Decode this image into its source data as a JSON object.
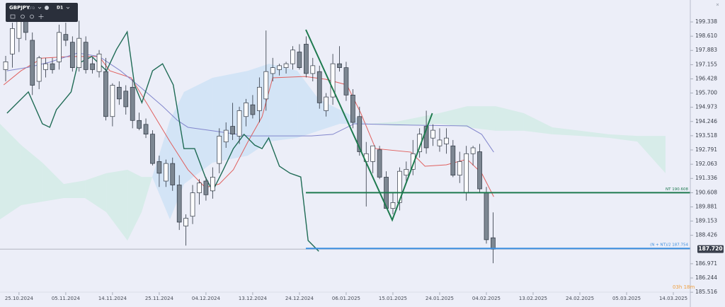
{
  "chart_data": {
    "type": "candlestick",
    "symbol": "GBPJPY",
    "instrument_type": "CFD",
    "timeframe": "D1",
    "countdown": "03h 18m",
    "ylim": [
      184.76,
      200.46
    ],
    "xlim": [
      -0.85,
      107.74
    ],
    "grid": false,
    "yticks": [
      199.338,
      {
        "value": 198.61,
        "label": "198.610"
      },
      197.883,
      197.155,
      196.428,
      {
        "value": 195.7,
        "label": "195.700"
      },
      194.973,
      194.246,
      193.518,
      192.791,
      192.063,
      191.336,
      190.608,
      189.881,
      189.153,
      188.426,
      186.971,
      186.244,
      185.516
    ],
    "xticks": [
      {
        "value": 2,
        "label": "25.10.2024"
      },
      {
        "value": 9,
        "label": "05.11.2024"
      },
      {
        "value": 16,
        "label": "14.11.2024"
      },
      {
        "value": 23,
        "label": "25.11.2024"
      },
      {
        "value": 30,
        "label": "04.12.2024"
      },
      {
        "value": 37,
        "label": "13.12.2024"
      },
      {
        "value": 44,
        "label": "24.12.2024"
      },
      {
        "value": 51,
        "label": "06.01.2025"
      },
      {
        "value": 58,
        "label": "15.01.2025"
      },
      {
        "value": 65,
        "label": "24.01.2025"
      },
      {
        "value": 72,
        "label": "04.02.2025"
      },
      {
        "value": 79,
        "label": "13.02.2025"
      },
      {
        "value": 86,
        "label": "24.02.2025"
      },
      {
        "value": 93,
        "label": "05.03.2025"
      },
      {
        "value": 100,
        "label": "14.03.2025"
      }
    ],
    "up_color": "#ffffff",
    "down_color": "#7d8792",
    "outline_color": "#2c3440",
    "open": [
      196.9,
      197.7,
      198.5,
      199.5,
      198.4,
      196.3,
      196.9,
      197.2,
      197.3,
      198.7,
      198.3,
      197.0,
      198.3,
      197.2,
      196.8,
      196.8,
      194.5,
      196.0,
      195.8,
      196.0,
      194.3,
      194.1,
      193.6,
      192.2,
      191.2,
      192.1,
      191.0,
      188.9,
      189.4,
      190.6,
      191.2,
      190.7,
      192.1,
      193.2,
      194.0,
      193.5,
      194.5,
      195.1,
      194.8,
      195.4,
      196.7,
      196.9,
      197.0,
      197.2,
      197.8,
      198.2,
      196.7,
      196.8,
      194.8,
      195.5,
      197.2,
      197.0,
      195.6,
      194.5,
      192.2,
      192.2,
      192.8,
      191.4,
      189.8,
      190.1,
      191.5,
      191.8,
      192.7,
      194.0,
      193.4,
      193.0,
      193.1,
      193.0,
      191.5,
      190.6,
      192.6,
      192.7,
      190.6,
      188.3
    ],
    "high": [
      197.6,
      199.3,
      200.0,
      200.2,
      198.8,
      197.6,
      197.5,
      197.5,
      199.2,
      199.3,
      198.6,
      199.4,
      198.6,
      197.5,
      197.9,
      197.5,
      196.2,
      196.3,
      196.1,
      196.4,
      194.7,
      194.4,
      193.8,
      192.5,
      192.3,
      192.4,
      191.5,
      189.5,
      191.0,
      191.3,
      191.4,
      191.9,
      193.9,
      194.2,
      195.2,
      195.0,
      195.4,
      195.6,
      196.5,
      198.9,
      197.5,
      197.2,
      197.3,
      198.1,
      198.2,
      198.6,
      197.5,
      197.1,
      195.7,
      197.7,
      198.1,
      197.3,
      195.9,
      195.0,
      193.2,
      193.0,
      193.0,
      191.7,
      190.6,
      191.9,
      192.2,
      193.3,
      193.9,
      194.8,
      194.1,
      193.9,
      193.9,
      193.3,
      192.7,
      193.0,
      193.0,
      193.1,
      190.9,
      189.6
    ],
    "low": [
      196.3,
      197.0,
      197.8,
      198.4,
      195.6,
      195.9,
      196.5,
      196.7,
      196.9,
      198.1,
      196.8,
      196.8,
      196.7,
      196.7,
      196.5,
      194.3,
      194.0,
      195.1,
      194.6,
      193.9,
      193.8,
      193.4,
      192.0,
      190.9,
      190.9,
      190.7,
      188.7,
      187.9,
      189.0,
      190.0,
      190.2,
      190.3,
      191.6,
      192.9,
      193.3,
      193.1,
      194.0,
      194.4,
      194.2,
      194.8,
      196.3,
      196.6,
      196.7,
      196.9,
      196.9,
      196.5,
      196.3,
      194.9,
      194.5,
      195.1,
      196.8,
      195.3,
      193.9,
      192.5,
      189.9,
      191.6,
      191.3,
      189.8,
      189.5,
      189.7,
      191.1,
      191.5,
      192.4,
      192.6,
      193.0,
      192.7,
      192.6,
      191.4,
      191.1,
      190.2,
      192.0,
      190.6,
      188.0,
      187.0
    ],
    "close": [
      197.3,
      199.0,
      199.6,
      198.8,
      196.1,
      197.5,
      197.2,
      196.9,
      198.8,
      198.4,
      197.0,
      198.5,
      196.9,
      196.9,
      197.7,
      194.5,
      196.1,
      195.4,
      195.0,
      194.3,
      193.9,
      193.6,
      192.1,
      191.6,
      192.1,
      191.0,
      189.1,
      189.3,
      190.6,
      191.1,
      190.5,
      191.4,
      193.5,
      193.8,
      193.6,
      194.8,
      195.2,
      194.6,
      196.0,
      196.8,
      197.0,
      197.1,
      197.2,
      197.9,
      197.0,
      196.7,
      197.1,
      195.2,
      195.5,
      197.2,
      197.0,
      195.6,
      194.2,
      192.7,
      192.6,
      193.0,
      191.4,
      189.8,
      190.1,
      191.7,
      191.8,
      192.6,
      193.6,
      192.9,
      193.8,
      193.3,
      193.4,
      191.5,
      192.2,
      192.6,
      192.9,
      190.8,
      188.2,
      187.72
    ],
    "last_price": {
      "value": 187.72,
      "label": "187.720"
    },
    "lines": [
      {
        "color": "#e0605e",
        "width": 1,
        "x": [
          -0.3,
          2.3,
          5.5,
          9.8,
          14.0,
          15.6,
          18.8,
          21.4,
          24.6,
          27.3,
          29.9,
          32.0,
          34.1,
          36.3,
          38.4,
          40.0,
          44.8,
          47.9,
          51.1,
          53.2,
          55.4,
          60.7,
          62.8,
          66.0,
          69.1,
          71.3,
          73.1
        ],
        "values": [
          196.12,
          196.84,
          197.49,
          197.57,
          197.57,
          196.84,
          196.48,
          195.03,
          193.22,
          191.78,
          190.87,
          191.05,
          191.78,
          193.22,
          194.49,
          196.48,
          196.55,
          196.41,
          196.12,
          194.67,
          192.86,
          192.68,
          191.96,
          192.03,
          192.32,
          191.6,
          190.4
        ]
      },
      {
        "color": "#8286cc",
        "width": 1,
        "x": [
          0.2,
          3.4,
          6.6,
          10.8,
          14.0,
          17.2,
          20.4,
          23.5,
          25.7,
          27.3,
          31.0,
          36.3,
          45.8,
          49.0,
          52.2,
          60.7,
          69.1,
          71.3,
          73.1
        ],
        "values": [
          196.84,
          197.02,
          197.28,
          197.75,
          197.57,
          196.84,
          195.94,
          195.03,
          194.31,
          193.95,
          193.77,
          193.51,
          193.51,
          193.59,
          194.13,
          194.06,
          194.02,
          193.59,
          192.68
        ]
      },
      {
        "color": "#1f6b55",
        "width": 1.4,
        "x": [
          0.2,
          3.4,
          5.5,
          6.6,
          7.6,
          9.8,
          10.8,
          12.9,
          15.1,
          16.6,
          18.2,
          19.3,
          20.4,
          22.0,
          23.5,
          25.1,
          26.7,
          28.3,
          29.9,
          31.0,
          32.6,
          34.1,
          35.7,
          37.3,
          38.4,
          39.4,
          41.0,
          42.6,
          44.2,
          45.3,
          46.9
        ],
        "values": [
          194.67,
          195.76,
          194.13,
          193.95,
          194.85,
          195.76,
          197.2,
          197.57,
          196.84,
          197.93,
          198.83,
          196.12,
          195.21,
          196.84,
          197.2,
          196.12,
          192.86,
          192.86,
          191.41,
          190.69,
          191.78,
          192.86,
          193.59,
          193.04,
          192.86,
          193.41,
          191.96,
          191.6,
          191.41,
          188.16,
          187.61
        ]
      }
    ],
    "cloud": {
      "bullish_color": "#cfe2f6",
      "bearish_color": "#d3ebe6",
      "x": [
        -0.85,
        2.33,
        5.51,
        8.7,
        11.88,
        15.06,
        18.24,
        20.36,
        21.95,
        24.6,
        26.72,
        30.97,
        36.27,
        39.45,
        43.69,
        46.87,
        50.05,
        54.3,
        58.54,
        64.9,
        69.14,
        73.38,
        77.62,
        81.87,
        86.11,
        90.35,
        94.59,
        98.83
      ],
      "span_a": [
        189.24,
        189.97,
        190.15,
        190.33,
        190.33,
        189.61,
        188.16,
        189.61,
        191.41,
        194.31,
        195.76,
        196.48,
        196.84,
        197.2,
        196.84,
        195.39,
        194.85,
        194.13,
        194.02,
        194.13,
        193.95,
        193.77,
        193.77,
        193.59,
        193.51,
        193.41,
        193.22,
        191.6
      ],
      "span_b": [
        194.13,
        193.04,
        192.14,
        191.05,
        191.23,
        191.6,
        191.78,
        191.41,
        191.41,
        189.24,
        191.05,
        192.14,
        192.5,
        193.22,
        193.41,
        193.77,
        194.13,
        194.13,
        194.24,
        194.67,
        195.03,
        195.03,
        194.67,
        193.95,
        193.77,
        193.59,
        193.51,
        193.51
      ]
    },
    "pattern": {
      "color": "#1e7a4f",
      "x": [
        44.96,
        57.9,
        63.9
      ],
      "values": [
        198.94,
        189.21,
        194.67
      ]
    },
    "levels": [
      {
        "label": "NT 190.608",
        "value": 190.608,
        "x_start": 44.96,
        "color": "#1e7a4f"
      },
      {
        "label": "(N + NT)/2 187.754",
        "value": 187.754,
        "x_start": 44.96,
        "color": "#3d8fe0"
      }
    ]
  }
}
